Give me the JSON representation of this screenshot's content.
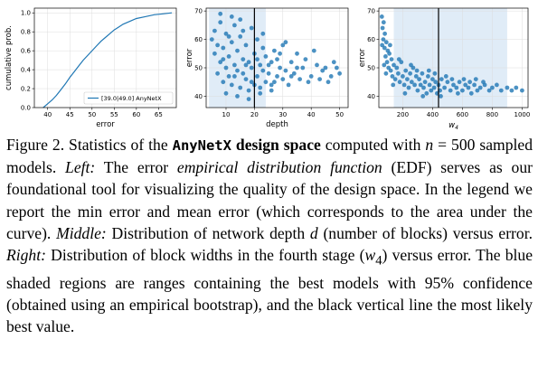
{
  "caption": {
    "fig_label": "Figure 2.",
    "p1": " Statistics of the ",
    "p2": "AnyNetX",
    "p3": " design space",
    "p4": " computed with ",
    "p5": "n",
    "p6": " = 500 sampled models. ",
    "p7": "Left:",
    "p8": " The error ",
    "p9": "empirical distribution function",
    "p10": " (EDF) serves as our foundational tool for visualizing the quality of the design space. In the legend we report the min error and mean error (which corresponds to the area under the curve). ",
    "p11": "Middle:",
    "p12": " Distribution of network depth ",
    "p13": "d",
    "p14": " (number of blocks) versus error. ",
    "p15": "Right:",
    "p16": " Distribution of block widths in the fourth stage (",
    "p17": "w",
    "p18": "4",
    "p19": ") versus error. The blue shaded regions are ranges containing the best models with 95% confidence (obtained using an empirical bootstrap), and the black vertical line the most likely best value."
  },
  "chart_data": [
    {
      "type": "line",
      "xlabel": "error",
      "ylabel": "cumulative prob.",
      "xlim": [
        37,
        69
      ],
      "ylim": [
        0,
        1.05
      ],
      "xticks": [
        40,
        45,
        50,
        55,
        60,
        65
      ],
      "yticks": [
        0.0,
        0.2,
        0.4,
        0.6,
        0.8,
        1.0
      ],
      "legend": "[39.0|49.0] AnyNetX",
      "legend_position": "lower-right",
      "color": "#1f77b4",
      "series": [
        {
          "x": [
            39.0,
            40,
            41,
            42,
            43,
            44,
            45,
            46,
            47,
            48,
            49,
            50,
            51,
            52,
            53,
            54,
            55,
            56,
            57,
            58,
            59,
            60,
            62,
            64,
            66,
            68
          ],
          "y": [
            0.0,
            0.04,
            0.08,
            0.13,
            0.19,
            0.25,
            0.32,
            0.38,
            0.44,
            0.5,
            0.55,
            0.6,
            0.65,
            0.7,
            0.74,
            0.78,
            0.82,
            0.85,
            0.88,
            0.9,
            0.92,
            0.94,
            0.96,
            0.98,
            0.99,
            1.0
          ]
        }
      ]
    },
    {
      "type": "scatter",
      "xlabel": "depth",
      "ylabel": "error",
      "xlim": [
        3,
        53
      ],
      "ylim": [
        36,
        71
      ],
      "xticks": [
        10,
        20,
        30,
        40,
        50
      ],
      "yticks": [
        40,
        50,
        60,
        70
      ],
      "shaded_range": [
        4,
        24
      ],
      "best_value": 20,
      "color": "#1f77b4",
      "points": [
        [
          5,
          60
        ],
        [
          6,
          55
        ],
        [
          6,
          63
        ],
        [
          7,
          48
        ],
        [
          7,
          58
        ],
        [
          8,
          52
        ],
        [
          8,
          66
        ],
        [
          9,
          45
        ],
        [
          9,
          57
        ],
        [
          10,
          50
        ],
        [
          10,
          62
        ],
        [
          11,
          47
        ],
        [
          11,
          54
        ],
        [
          12,
          59
        ],
        [
          12,
          44
        ],
        [
          13,
          51
        ],
        [
          13,
          65
        ],
        [
          14,
          49
        ],
        [
          14,
          56
        ],
        [
          15,
          43
        ],
        [
          15,
          61
        ],
        [
          16,
          48
        ],
        [
          16,
          53
        ],
        [
          17,
          46
        ],
        [
          17,
          58
        ],
        [
          18,
          42
        ],
        [
          18,
          52
        ],
        [
          19,
          50
        ],
        [
          19,
          64
        ],
        [
          20,
          44
        ],
        [
          20,
          55
        ],
        [
          21,
          47
        ],
        [
          21,
          60
        ],
        [
          22,
          43
        ],
        [
          22,
          51
        ],
        [
          23,
          49
        ],
        [
          23,
          57
        ],
        [
          24,
          45
        ],
        [
          24,
          54
        ],
        [
          25,
          48
        ],
        [
          26,
          52
        ],
        [
          26,
          44
        ],
        [
          27,
          56
        ],
        [
          28,
          47
        ],
        [
          28,
          53
        ],
        [
          29,
          50
        ],
        [
          30,
          46
        ],
        [
          30,
          58
        ],
        [
          31,
          49
        ],
        [
          32,
          44
        ],
        [
          33,
          52
        ],
        [
          34,
          48
        ],
        [
          35,
          55
        ],
        [
          36,
          46
        ],
        [
          37,
          50
        ],
        [
          38,
          53
        ],
        [
          40,
          47
        ],
        [
          42,
          51
        ],
        [
          44,
          49
        ],
        [
          46,
          45
        ],
        [
          48,
          52
        ],
        [
          50,
          48
        ],
        [
          8,
          69
        ],
        [
          12,
          68
        ],
        [
          15,
          67
        ],
        [
          10,
          41
        ],
        [
          14,
          40
        ],
        [
          18,
          39
        ],
        [
          22,
          41
        ],
        [
          26,
          42
        ],
        [
          9,
          53
        ],
        [
          11,
          61
        ],
        [
          13,
          47
        ],
        [
          16,
          63
        ],
        [
          17,
          51
        ],
        [
          19,
          45
        ],
        [
          21,
          53
        ],
        [
          23,
          62
        ],
        [
          25,
          51
        ],
        [
          27,
          45
        ],
        [
          29,
          55
        ],
        [
          31,
          59
        ],
        [
          33,
          47
        ],
        [
          35,
          50
        ],
        [
          39,
          45
        ],
        [
          41,
          56
        ],
        [
          43,
          46
        ],
        [
          45,
          50
        ],
        [
          47,
          47
        ],
        [
          49,
          50
        ]
      ]
    },
    {
      "type": "scatter",
      "xlabel": "w4",
      "ylabel": "error",
      "xlim": [
        40,
        1040
      ],
      "ylim": [
        36,
        71
      ],
      "xticks": [
        200,
        400,
        600,
        800,
        1000
      ],
      "yticks": [
        40,
        50,
        60,
        70
      ],
      "shaded_range": [
        140,
        900
      ],
      "best_value": 440,
      "color": "#1f77b4",
      "points": [
        [
          60,
          68
        ],
        [
          65,
          64
        ],
        [
          70,
          60
        ],
        [
          72,
          66
        ],
        [
          78,
          57
        ],
        [
          80,
          62
        ],
        [
          85,
          54
        ],
        [
          90,
          59
        ],
        [
          95,
          52
        ],
        [
          100,
          56
        ],
        [
          105,
          50
        ],
        [
          110,
          55
        ],
        [
          120,
          49
        ],
        [
          125,
          53
        ],
        [
          130,
          47
        ],
        [
          140,
          51
        ],
        [
          150,
          46
        ],
        [
          160,
          50
        ],
        [
          170,
          48
        ],
        [
          180,
          45
        ],
        [
          190,
          52
        ],
        [
          200,
          47
        ],
        [
          210,
          44
        ],
        [
          220,
          49
        ],
        [
          230,
          46
        ],
        [
          240,
          43
        ],
        [
          250,
          48
        ],
        [
          260,
          45
        ],
        [
          270,
          50
        ],
        [
          280,
          44
        ],
        [
          290,
          47
        ],
        [
          300,
          42
        ],
        [
          310,
          46
        ],
        [
          320,
          44
        ],
        [
          330,
          48
        ],
        [
          340,
          43
        ],
        [
          350,
          45
        ],
        [
          360,
          41
        ],
        [
          370,
          47
        ],
        [
          380,
          44
        ],
        [
          390,
          42
        ],
        [
          400,
          46
        ],
        [
          410,
          43
        ],
        [
          420,
          45
        ],
        [
          430,
          41
        ],
        [
          440,
          44
        ],
        [
          450,
          42
        ],
        [
          460,
          46
        ],
        [
          480,
          43
        ],
        [
          500,
          45
        ],
        [
          520,
          42
        ],
        [
          540,
          44
        ],
        [
          560,
          43
        ],
        [
          580,
          45
        ],
        [
          600,
          42
        ],
        [
          620,
          44
        ],
        [
          640,
          43
        ],
        [
          660,
          41
        ],
        [
          680,
          44
        ],
        [
          700,
          42
        ],
        [
          720,
          43
        ],
        [
          750,
          44
        ],
        [
          780,
          42
        ],
        [
          800,
          43
        ],
        [
          830,
          44
        ],
        [
          860,
          42
        ],
        [
          900,
          43
        ],
        [
          930,
          42
        ],
        [
          960,
          43
        ],
        [
          1000,
          42
        ],
        [
          62,
          58
        ],
        [
          75,
          51
        ],
        [
          88,
          48
        ],
        [
          115,
          58
        ],
        [
          135,
          44
        ],
        [
          175,
          53
        ],
        [
          215,
          41
        ],
        [
          255,
          51
        ],
        [
          295,
          49
        ],
        [
          335,
          40
        ],
        [
          375,
          49
        ],
        [
          415,
          48
        ],
        [
          455,
          40
        ],
        [
          490,
          47
        ],
        [
          530,
          46
        ],
        [
          570,
          41
        ],
        [
          610,
          46
        ],
        [
          650,
          45
        ],
        [
          690,
          46
        ],
        [
          740,
          45
        ]
      ]
    }
  ]
}
